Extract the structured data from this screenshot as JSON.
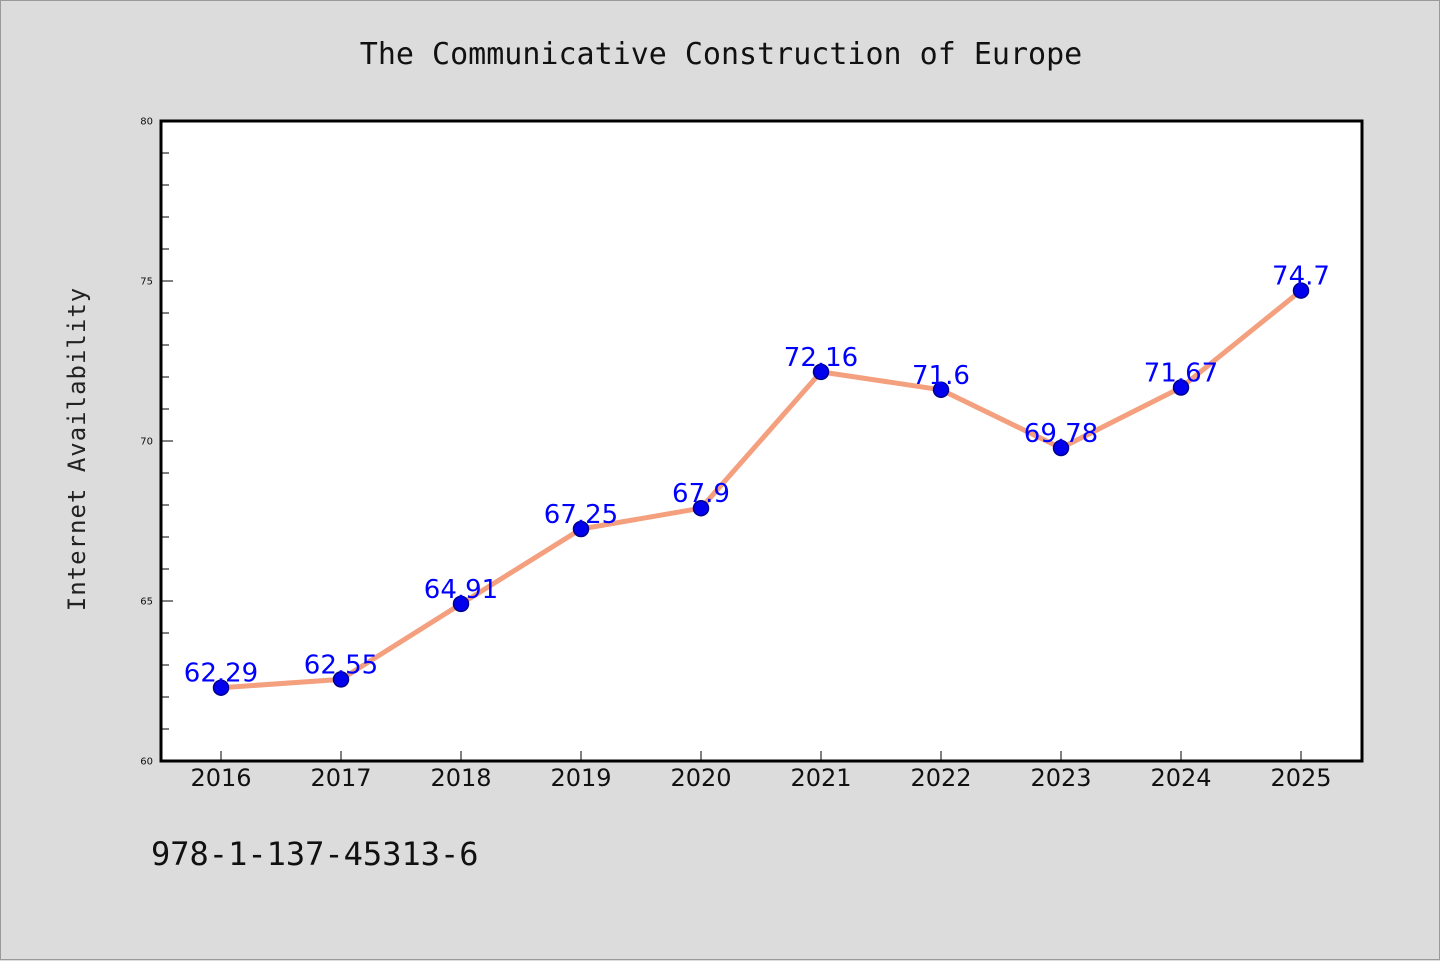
{
  "chart_data": {
    "type": "line",
    "title": "The Communicative Construction of Europe",
    "ylabel": "Internet Availability",
    "xlabel": "",
    "categories": [
      "2016",
      "2017",
      "2018",
      "2019",
      "2020",
      "2021",
      "2022",
      "2023",
      "2024",
      "2025"
    ],
    "values": [
      62.29,
      62.55,
      64.91,
      67.25,
      67.9,
      72.16,
      71.6,
      69.78,
      71.67,
      74.7
    ],
    "data_labels": [
      "62.29",
      "62.55",
      "64.91",
      "67.25",
      "67.9",
      "72.16",
      "71.6",
      "69.78",
      "71.67",
      "74.7"
    ],
    "ylim": [
      60,
      80
    ],
    "yticks": [
      "60",
      "65",
      "70",
      "75",
      "80"
    ],
    "grid": false,
    "legend": "none",
    "colors": {
      "line": "#f4a07e",
      "marker": "#0000ee",
      "marker_edge": "#00008b",
      "label": "#0000ff",
      "background": "#dcdcdc",
      "plot_background": "#ffffff"
    }
  },
  "footer_text": "978-1-137-45313-6"
}
